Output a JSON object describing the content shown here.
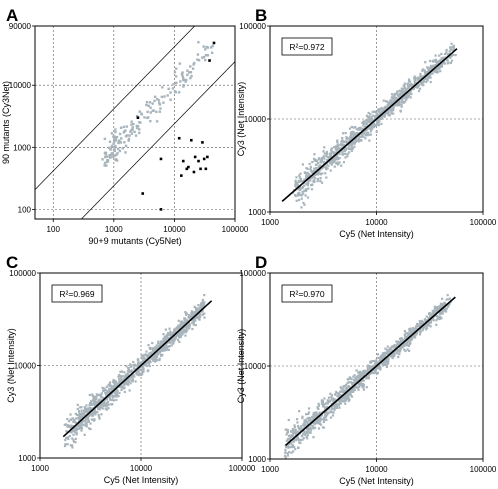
{
  "chart_data": [
    {
      "type": "scatter",
      "panel_letter": "A",
      "xlabel": "90+9 mutants (Cy5Net)",
      "ylabel": "90 mutants (Cy3Net)",
      "x_ticks": [
        "100",
        "1000",
        "10000",
        "100000"
      ],
      "y_ticks": [
        "100",
        "1000",
        "10000",
        "90000"
      ],
      "xlim": [
        50,
        100000
      ],
      "ylim": [
        70,
        90000
      ],
      "scale": "log-log",
      "grid": "dashed at decades",
      "guide_lines": "two diagonal lines bounding a band around y = x",
      "series": [
        {
          "color": "#a8b4bb",
          "style": "cloud",
          "center": [
            [
              700,
              700
            ],
            [
              40000,
              40000
            ]
          ],
          "spread": 0.12,
          "count": 180
        },
        {
          "color": "#000000",
          "style": "points",
          "x": [
            2500,
            3000,
            6000,
            6000,
            12000,
            13000,
            14000,
            16000,
            17000,
            19000,
            21000,
            22000,
            25000,
            27000,
            29000,
            31000,
            33000,
            35000,
            38000,
            45000
          ],
          "y": [
            3000,
            180,
            650,
            100,
            1400,
            350,
            600,
            450,
            480,
            1300,
            400,
            700,
            600,
            450,
            1200,
            650,
            450,
            700,
            25000,
            48000
          ]
        }
      ]
    },
    {
      "type": "scatter",
      "panel_letter": "B",
      "xlabel": "Cy5 (Net Intensity)",
      "ylabel": "Cy3 (Net Intensity)",
      "x_ticks": [
        "1000",
        "10000",
        "100000"
      ],
      "y_ticks": [
        "1000",
        "10000",
        "100000"
      ],
      "xlim": [
        1000,
        100000
      ],
      "ylim": [
        1000,
        100000
      ],
      "scale": "log-log",
      "annotation": "R²=0.972",
      "fit_line": [
        [
          1300,
          1300
        ],
        [
          57000,
          57000
        ]
      ],
      "point_color": "#a8b4bb",
      "point_range": [
        1600,
        60000
      ]
    },
    {
      "type": "scatter",
      "panel_letter": "C",
      "xlabel": "Cy5 (Net Intensity)",
      "ylabel": "Cy3 (Net Intensity)",
      "x_ticks": [
        "1000",
        "10000",
        "100000"
      ],
      "y_ticks": [
        "1000",
        "10000",
        "100000"
      ],
      "xlim": [
        1000,
        100000
      ],
      "ylim": [
        1000,
        100000
      ],
      "scale": "log-log",
      "annotation": "R²=0.969",
      "fit_line": [
        [
          1700,
          1700
        ],
        [
          50000,
          50000
        ]
      ],
      "point_color": "#a8b4bb",
      "point_range": [
        1700,
        50000
      ]
    },
    {
      "type": "scatter",
      "panel_letter": "D",
      "xlabel": "Cy5 (Net Intensity)",
      "ylabel": "Cy3 (Net Intensity)",
      "x_ticks": [
        "1000",
        "10000",
        "100000"
      ],
      "y_ticks": [
        "1000",
        "10000",
        "100000"
      ],
      "xlim": [
        1000,
        100000
      ],
      "ylim": [
        1000,
        100000
      ],
      "scale": "log-log",
      "annotation": "R²=0.970",
      "fit_line": [
        [
          1400,
          1400
        ],
        [
          55000,
          55000
        ]
      ],
      "point_color": "#a8b4bb",
      "point_range": [
        1300,
        55000
      ]
    }
  ]
}
